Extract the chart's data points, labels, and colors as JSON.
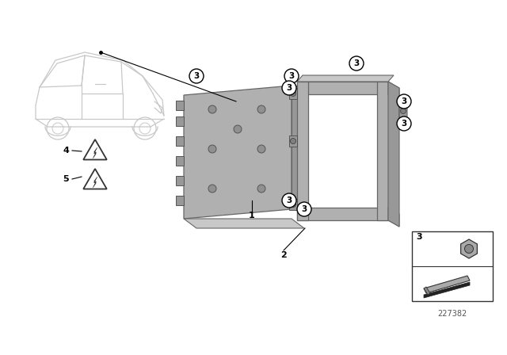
{
  "background_color": "#ffffff",
  "diagram_number": "227382",
  "car_color": "#c8c8c8",
  "part_gray_light": "#c8c8c8",
  "part_gray_mid": "#b0b0b0",
  "part_gray_dark": "#989898",
  "callout_bg": "#ffffff",
  "callout_edge": "#000000",
  "line_color": "#000000",
  "figsize": [
    6.4,
    4.48
  ],
  "dpi": 100
}
